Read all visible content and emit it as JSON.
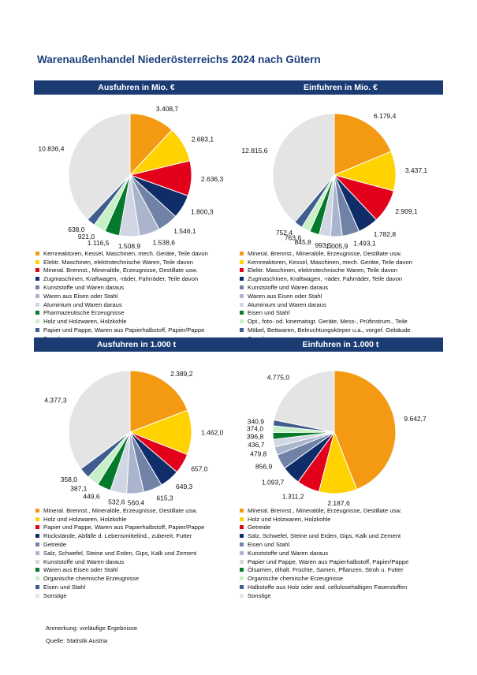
{
  "title": "Warenaußenhandel Niederösterreichs 2024 nach Gütern",
  "note": "Anmerkung: vorläufige Ergebnisse",
  "source": "Quelle: Statistik Austria",
  "chart_data": [
    {
      "type": "pie",
      "title": "Ausfuhren in Mio. €",
      "categories": [
        "Kernreaktoren, Kessel, Maschinen, mech. Geräte, Teile davon",
        "Elektr. Maschinen, elektrotechnische Waren, Teile davon",
        "Mineral. Brennst., Mineralöle, Erzeugnisse, Destillate usw.",
        "Zugmaschinen, Kraftwagen, -räder, Fahrräder, Teile davon",
        "Kunststoffe und Waren daraus",
        "Waren aus Eisen oder Stahl",
        "Aluminium und Waren daraus",
        "Pharmazeutische Erzeugnisse",
        "Holz und Holzwaren, Holzkohle",
        "Papier und Pappe, Waren aus Papierhalbstoff, Papier/Pappe",
        "Sonstige"
      ],
      "values": [
        3408.7,
        2683.1,
        2636.3,
        1800.3,
        1546.1,
        1538.6,
        1508.9,
        1116.5,
        921.0,
        638.0,
        10836.4
      ],
      "value_labels": [
        "3.408,7",
        "2.683,1",
        "2.636,3",
        "1.800,3",
        "1.546,1",
        "1.538,6",
        "1.508,9",
        "1.116,5",
        "921,0",
        "638,0",
        "10.836,4"
      ],
      "colors": [
        "#f39a12",
        "#ffd200",
        "#e3001b",
        "#0f2d68",
        "#7182a7",
        "#aab4cc",
        "#d0d6e3",
        "#067a2c",
        "#c8f0c6",
        "#3f5d8f",
        "#e4e4e4"
      ]
    },
    {
      "type": "pie",
      "title": "Einfuhren in Mio. €",
      "categories": [
        "Mineral. Brennst., Mineralöle, Erzeugnisse, Destillate usw.",
        "Kernreaktoren, Kessel, Maschinen, mech. Geräte, Teile davon",
        "Elektr. Maschinen, elektrotechnische Waren, Teile davon",
        "Zugmaschinen, Kraftwagen, -räder, Fahrräder, Teile davon",
        "Kunststoffe und Waren daraus",
        "Waren aus Eisen oder Stahl",
        "Aluminium und Waren daraus",
        "Eisen und Stahl",
        "Opt., foto- od. kinematogr. Geräte, Mess-, Prüfinstrum., Teile",
        "Möbel, Bettwaren, Beleuchtungskörper u.a., vorgef. Gebäude",
        "Sonstige"
      ],
      "values": [
        6179.4,
        3437.1,
        2909.1,
        1782.8,
        1493.1,
        1005.9,
        993.5,
        845.8,
        763.6,
        752.4,
        12815.6
      ],
      "value_labels": [
        "6.179,4",
        "3.437,1",
        "2.909,1",
        "1.782,8",
        "1.493,1",
        "1.005,9",
        "993,5",
        "845,8",
        "763,6",
        "752,4",
        "12.815,6"
      ],
      "colors": [
        "#f39a12",
        "#ffd200",
        "#e3001b",
        "#0f2d68",
        "#7182a7",
        "#aab4cc",
        "#d0d6e3",
        "#067a2c",
        "#c8f0c6",
        "#3f5d8f",
        "#e4e4e4"
      ]
    },
    {
      "type": "pie",
      "title": "Ausfuhren in 1.000 t",
      "categories": [
        "Mineral. Brennst., Mineralöle, Erzeugnisse, Destillate usw.",
        "Holz und Holzwaren, Holzkohle",
        "Papier und Pappe, Waren aus Papierhalbstoff, Papier/Pappe",
        "Rückstände, Abfälle d. Lebensmittelind., zubereit. Futter",
        "Getreide",
        "Salz, Schwefel, Steine und Erden, Gips, Kalk und Zement",
        "Kunststoffe und Waren daraus",
        "Waren aus Eisen oder Stahl",
        "Organische chemische Erzeugnisse",
        "Eisen und Stahl",
        "Sonstige"
      ],
      "values": [
        2389.2,
        1462.0,
        657.0,
        649.3,
        615.3,
        560.4,
        532.6,
        449.6,
        387.1,
        358.0,
        4377.3
      ],
      "value_labels": [
        "2.389,2",
        "1.462,0",
        "657,0",
        "649,3",
        "615,3",
        "560,4",
        "532,6",
        "449,6",
        "387,1",
        "358,0",
        "4.377,3"
      ],
      "colors": [
        "#f39a12",
        "#ffd200",
        "#e3001b",
        "#0f2d68",
        "#7182a7",
        "#aab4cc",
        "#d0d6e3",
        "#067a2c",
        "#c8f0c6",
        "#3f5d8f",
        "#e4e4e4"
      ]
    },
    {
      "type": "pie",
      "title": "Einfuhren in 1.000 t",
      "categories": [
        "Mineral. Brennst., Mineralöle, Erzeugnisse, Destillate usw.",
        "Holz und Holzwaren, Holzkohle",
        "Getreide",
        "Salz, Schwefel, Steine und Erden, Gips, Kalk und Zement",
        "Eisen und Stahl",
        "Kunststoffe und Waren daraus",
        "Papier und Pappe, Waren aus Papierhalbstoff, Papier/Pappe",
        "Ölsamen, ölhalt. Früchte, Samen, Pflanzen, Stroh u. Futter",
        "Organische chemische Erzeugnisse",
        "Halbstoffe aus Holz oder and. cellulosehaltigen Faserstoffen",
        "Sonstige"
      ],
      "values": [
        9642.7,
        2187.6,
        1311.2,
        1093.7,
        856.9,
        479.8,
        436.7,
        396.8,
        374.0,
        340.9,
        4775.0
      ],
      "value_labels": [
        "9.642,7",
        "2.187,6",
        "1.311,2",
        "1.093,7",
        "856,9",
        "479,8",
        "436,7",
        "396,8",
        "374,0",
        "340,9",
        "4.775,0"
      ],
      "colors": [
        "#f39a12",
        "#ffd200",
        "#e3001b",
        "#0f2d68",
        "#7182a7",
        "#aab4cc",
        "#d0d6e3",
        "#067a2c",
        "#c8f0c6",
        "#3f5d8f",
        "#e4e4e4"
      ]
    }
  ]
}
